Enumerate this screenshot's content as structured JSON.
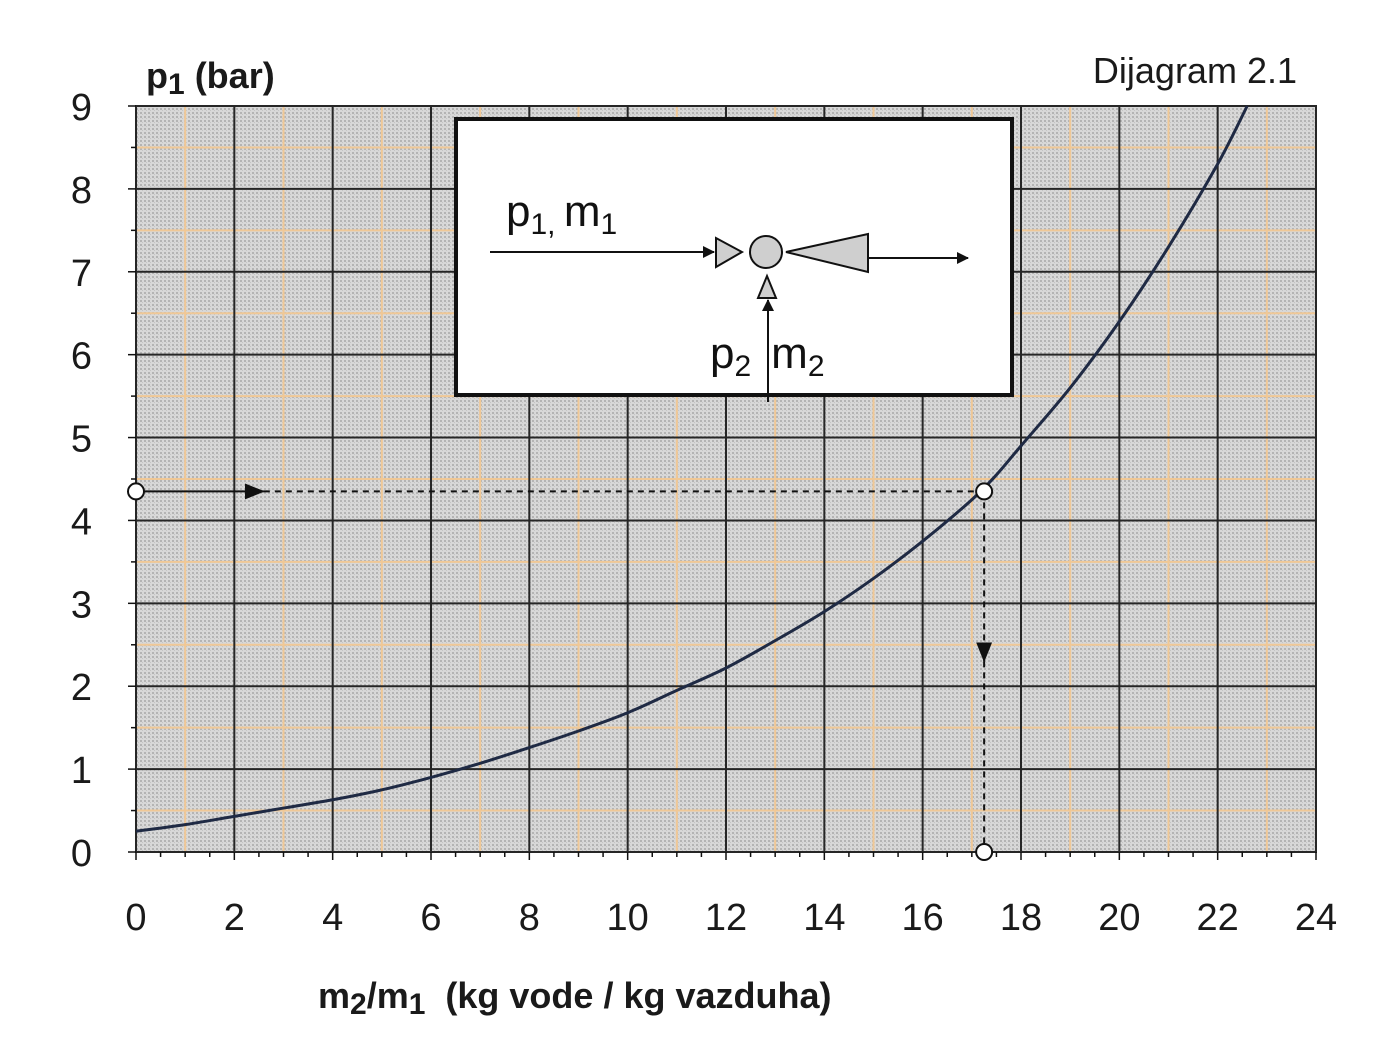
{
  "chart_data": {
    "type": "line",
    "title": "Dijagram 2.1",
    "xlabel_main": "m",
    "xlabel_sub1": "2",
    "xlabel_slash": "/m",
    "xlabel_sub2": "1",
    "xlabel_rest": "  (kg vode / kg vazduha)",
    "ylabel_main": "p",
    "ylabel_sub": "1",
    "ylabel_rest": " (bar)",
    "xlim": [
      0,
      24
    ],
    "ylim": [
      0,
      9
    ],
    "x_ticks": [
      "0",
      "2",
      "4",
      "6",
      "8",
      "10",
      "12",
      "14",
      "16",
      "18",
      "20",
      "22",
      "24"
    ],
    "y_ticks": [
      "0",
      "1",
      "2",
      "3",
      "4",
      "5",
      "6",
      "7",
      "8",
      "9"
    ],
    "grid": true,
    "series": [
      {
        "x": [
          0,
          1,
          2,
          3,
          4,
          5,
          6,
          7,
          8,
          9,
          10,
          11,
          12,
          13,
          14,
          15,
          16,
          17,
          17.5,
          18,
          19,
          20,
          21,
          22,
          22.6
        ],
        "y": [
          0.25,
          0.33,
          0.43,
          0.53,
          0.63,
          0.75,
          0.9,
          1.07,
          1.26,
          1.46,
          1.68,
          1.95,
          2.22,
          2.55,
          2.9,
          3.3,
          3.75,
          4.25,
          4.55,
          4.9,
          5.6,
          6.4,
          7.3,
          8.3,
          9.0
        ]
      }
    ],
    "example": {
      "p1": 4.35,
      "ratio": 17.25
    },
    "inset": {
      "top_main": "p",
      "top_sub": "1, ",
      "top_m": "m",
      "top_m_sub": "1",
      "bottom_main": "p",
      "bottom_sub": "2",
      "bottom_m": "m",
      "bottom_m_sub": "2"
    },
    "colors": {
      "plot_bg": "#c9c9c9",
      "major_grid": "#262626",
      "minor_grid": "#f0c896",
      "curve": "#1f2a44",
      "text": "#1a1a1a"
    }
  }
}
